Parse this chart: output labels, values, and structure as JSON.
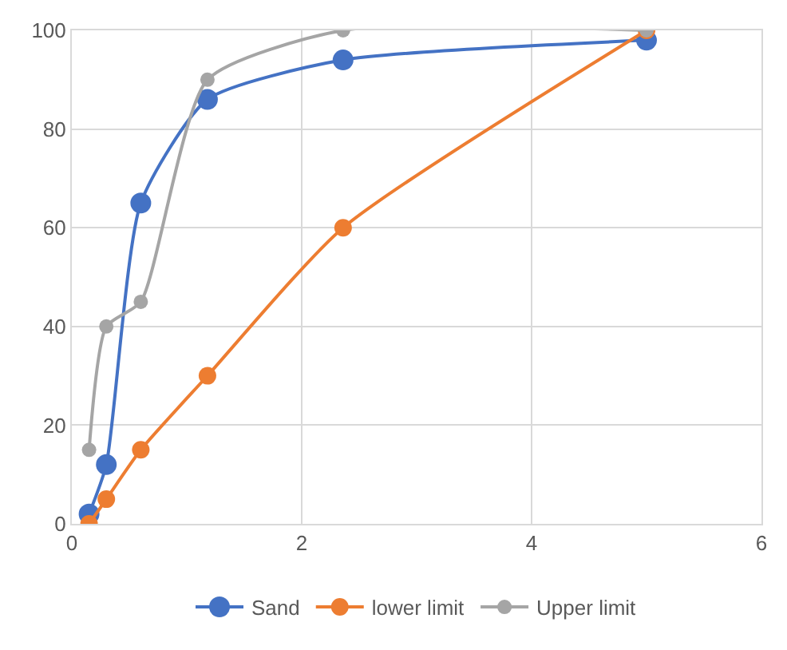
{
  "chart_data": {
    "type": "line",
    "x": [
      0.15,
      0.3,
      0.6,
      1.18,
      2.36,
      5
    ],
    "series": [
      {
        "name": "Sand",
        "color": "#4472c4",
        "values": [
          2,
          12,
          65,
          86,
          94,
          98
        ]
      },
      {
        "name": "lower limit",
        "color": "#ed7d31",
        "values": [
          0,
          5,
          15,
          30,
          60,
          100
        ]
      },
      {
        "name": "Upper limit",
        "color": "#a5a5a5",
        "values": [
          15,
          40,
          45,
          90,
          100,
          100
        ]
      }
    ],
    "xlim": [
      0,
      6
    ],
    "xticks": [
      0,
      2,
      4,
      6
    ],
    "ylim": [
      0,
      100
    ],
    "yticks": [
      0,
      20,
      40,
      60,
      80,
      100
    ],
    "grid": true,
    "legend": "bottom",
    "marker": "circle",
    "line_style": "solid"
  }
}
